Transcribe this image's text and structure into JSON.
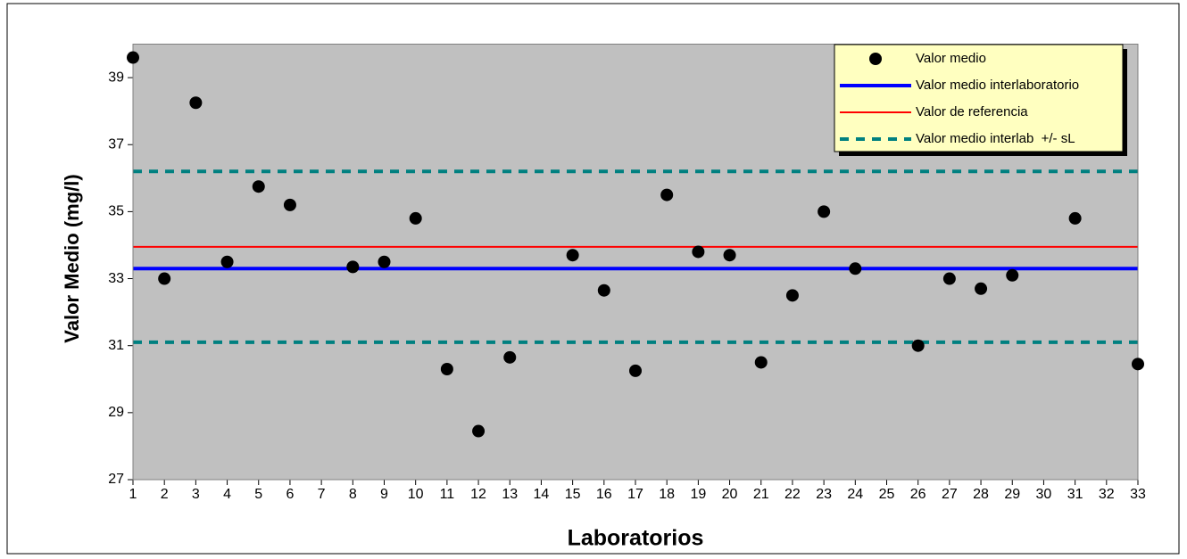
{
  "chart_data": {
    "type": "scatter",
    "x_label": "Laboratorios",
    "y_label": "Valor Medio (mg/l)",
    "xlim": [
      1,
      33
    ],
    "xticks": [
      1,
      2,
      3,
      4,
      5,
      6,
      7,
      8,
      9,
      10,
      11,
      12,
      13,
      14,
      15,
      16,
      17,
      18,
      19,
      20,
      21,
      22,
      23,
      24,
      25,
      26,
      27,
      28,
      29,
      30,
      31,
      32,
      33
    ],
    "ylim": [
      27,
      40
    ],
    "yticks": [
      27,
      29,
      31,
      33,
      35,
      37,
      39
    ],
    "x": [
      1,
      2,
      3,
      4,
      5,
      6,
      8,
      9,
      10,
      11,
      12,
      13,
      15,
      16,
      17,
      18,
      19,
      20,
      21,
      22,
      23,
      24,
      26,
      27,
      28,
      29,
      31,
      33
    ],
    "series": [
      {
        "name": "Valor medio",
        "color": "#000000",
        "values": [
          39.6,
          33.0,
          38.25,
          33.5,
          35.75,
          35.2,
          33.35,
          33.5,
          34.8,
          30.3,
          28.45,
          30.65,
          33.7,
          32.65,
          30.25,
          35.5,
          33.8,
          33.7,
          30.5,
          32.5,
          35.0,
          33.3,
          31.0,
          33.0,
          32.7,
          33.1,
          34.8,
          30.45
        ]
      }
    ],
    "reference_lines": [
      {
        "name": "Valor medio interlaboratorio",
        "color": "#0000ff",
        "values": [
          33.3
        ],
        "dashed": false,
        "width": 4
      },
      {
        "name": "Valor de referencia",
        "color": "#ff0000",
        "values": [
          33.95
        ],
        "dashed": false,
        "width": 2
      },
      {
        "name": "Valor medio interlab  +/- sL",
        "color": "#008080",
        "values": [
          36.2,
          31.1
        ],
        "dashed": true,
        "width": 4
      }
    ],
    "plot_background": "#c0c0c0",
    "legend_background": "#ffffc0",
    "legend_position": "upper right",
    "grid": false
  }
}
